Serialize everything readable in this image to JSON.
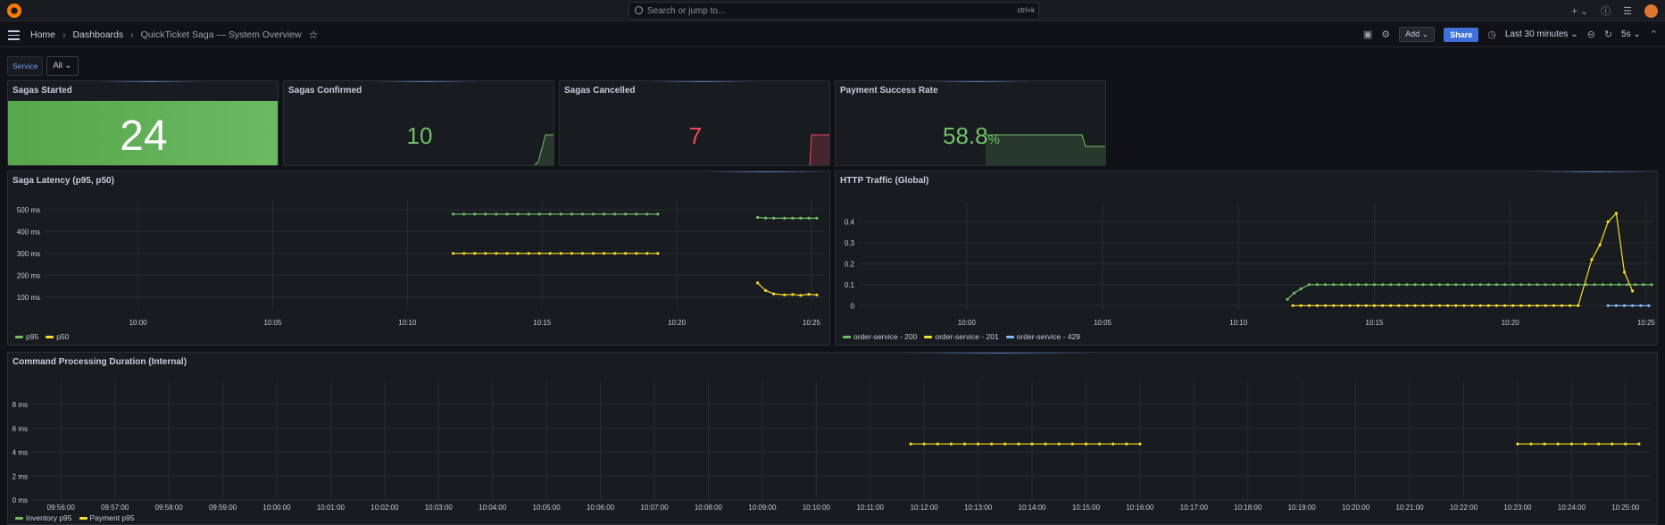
{
  "topbar": {
    "search_placeholder": "Search or jump to...",
    "search_shortcut": "ctrl+k",
    "icons": [
      "plus-icon",
      "help-icon",
      "rss-icon",
      "avatar"
    ]
  },
  "nav": {
    "home": "Home",
    "dashboards": "Dashboards",
    "current": "QuickTicket Saga — System Overview",
    "add_label": "Add",
    "share_label": "Share",
    "time_range": "Last 30 minutes",
    "refresh_interval": "5s"
  },
  "variables": {
    "service_label": "Service",
    "service_value": "All"
  },
  "colors": {
    "green": "#73bf69",
    "yellow": "#fade2a",
    "blue": "#8ab8ff",
    "red": "#f2495c",
    "bg_green": "#56a64b"
  },
  "stats": {
    "started": {
      "title": "Sagas Started",
      "value": "24"
    },
    "confirmed": {
      "title": "Sagas Confirmed",
      "value": "10"
    },
    "cancelled": {
      "title": "Sagas Cancelled",
      "value": "7"
    },
    "payment": {
      "title": "Payment Success Rate",
      "value": "58.8",
      "unit": "%"
    }
  },
  "panels": {
    "latency": {
      "title": "Saga Latency (p95, p50)",
      "legend": [
        "p95",
        "p50"
      ]
    },
    "http": {
      "title": "HTTP Traffic (Global)",
      "legend": [
        "order-service - 200",
        "order-service - 201",
        "order-service - 429"
      ]
    },
    "command": {
      "title": "Command Processing Duration (Internal)",
      "legend": [
        "Inventory p95",
        "Payment p95"
      ]
    }
  },
  "chart_data": [
    {
      "type": "line",
      "title": "Saga Latency (p95, p50)",
      "x_ticks": [
        "10:00",
        "10:05",
        "10:10",
        "10:15",
        "10:20",
        "10:25"
      ],
      "y_ticks": [
        "100 ms",
        "200 ms",
        "300 ms",
        "400 ms",
        "500 ms"
      ],
      "ylim": [
        50,
        520
      ],
      "x_range_min": [
        -3.5,
        25.5
      ],
      "series": [
        {
          "name": "p95",
          "color": "#73bf69",
          "segments": [
            {
              "x": [
                11.7,
                12.1,
                12.5,
                12.9,
                13.3,
                13.7,
                14.1,
                14.5,
                14.9,
                15.3,
                15.7,
                16.1,
                16.5,
                16.9,
                17.3,
                17.7,
                18.1,
                18.5,
                18.9,
                19.3
              ],
              "y": [
                480,
                480,
                480,
                480,
                480,
                480,
                480,
                480,
                480,
                480,
                480,
                480,
                480,
                480,
                480,
                480,
                480,
                480,
                480,
                480
              ]
            },
            {
              "x": [
                23.0,
                23.3,
                23.6,
                24.0,
                24.3,
                24.6,
                24.9,
                25.2
              ],
              "y": [
                465,
                462,
                461,
                461,
                461,
                461,
                461,
                461
              ]
            }
          ]
        },
        {
          "name": "p50",
          "color": "#fade2a",
          "segments": [
            {
              "x": [
                11.7,
                12.1,
                12.5,
                12.9,
                13.3,
                13.7,
                14.1,
                14.5,
                14.9,
                15.3,
                15.7,
                16.1,
                16.5,
                16.9,
                17.3,
                17.7,
                18.1,
                18.5,
                18.9,
                19.3
              ],
              "y": [
                300,
                300,
                300,
                300,
                300,
                300,
                300,
                300,
                300,
                300,
                300,
                300,
                300,
                300,
                300,
                300,
                300,
                300,
                300,
                300
              ]
            },
            {
              "x": [
                23.0,
                23.3,
                23.6,
                24.0,
                24.3,
                24.6,
                24.9,
                25.2
              ],
              "y": [
                165,
                130,
                115,
                110,
                112,
                108,
                113,
                110
              ]
            }
          ]
        }
      ]
    },
    {
      "type": "line",
      "title": "HTTP Traffic (Global)",
      "x_ticks": [
        "10:00",
        "10:05",
        "10:10",
        "10:15",
        "10:20",
        "10:25"
      ],
      "y_ticks": [
        "0",
        "0.1",
        "0.2",
        "0.3",
        "0.4"
      ],
      "ylim": [
        -0.02,
        0.47
      ],
      "x_range_min": [
        -4.0,
        25.3
      ],
      "series": [
        {
          "name": "order-service - 200",
          "color": "#73bf69",
          "points": "ramp",
          "x": [
            11.8,
            12.05,
            12.3,
            12.6,
            12.9,
            13.2,
            13.5,
            13.8,
            14.1,
            14.4,
            14.7,
            15.0,
            15.3,
            15.6,
            15.9,
            16.2,
            16.5,
            16.8,
            17.1,
            17.4,
            17.7,
            18.0,
            18.3,
            18.6,
            18.9,
            19.2,
            19.5,
            19.8,
            20.1,
            20.4,
            20.7,
            21.0,
            21.3,
            21.6,
            21.9,
            22.2,
            22.5,
            22.8,
            23.1,
            23.4,
            23.7,
            24.0,
            24.3,
            24.6,
            24.9,
            25.2
          ],
          "y": [
            0.03,
            0.06,
            0.08,
            0.1,
            0.1,
            0.1,
            0.1,
            0.1,
            0.1,
            0.1,
            0.1,
            0.1,
            0.1,
            0.1,
            0.1,
            0.1,
            0.1,
            0.1,
            0.1,
            0.1,
            0.1,
            0.1,
            0.1,
            0.1,
            0.1,
            0.1,
            0.1,
            0.1,
            0.1,
            0.1,
            0.1,
            0.1,
            0.1,
            0.1,
            0.1,
            0.1,
            0.1,
            0.1,
            0.1,
            0.1,
            0.1,
            0.1,
            0.1,
            0.1,
            0.1,
            0.1
          ]
        },
        {
          "name": "order-service - 201",
          "color": "#fade2a",
          "x": [
            12.0,
            12.3,
            12.6,
            12.9,
            13.2,
            13.5,
            13.8,
            14.1,
            14.4,
            14.7,
            15.0,
            15.3,
            15.6,
            15.9,
            16.2,
            16.5,
            16.8,
            17.1,
            17.4,
            17.7,
            18.0,
            18.3,
            18.6,
            18.9,
            19.2,
            19.5,
            19.8,
            20.1,
            20.4,
            20.7,
            21.0,
            21.3,
            21.6,
            21.9,
            22.2,
            22.5,
            23.0,
            23.3,
            23.6,
            23.9,
            24.2,
            24.5
          ],
          "y": [
            0,
            0,
            0,
            0,
            0,
            0,
            0,
            0,
            0,
            0,
            0,
            0,
            0,
            0,
            0,
            0,
            0,
            0,
            0,
            0,
            0,
            0,
            0,
            0,
            0,
            0,
            0,
            0,
            0,
            0,
            0,
            0,
            0,
            0,
            0,
            0,
            0.22,
            0.29,
            0.4,
            0.44,
            0.16,
            0.07
          ]
        },
        {
          "name": "order-service - 429",
          "color": "#8ab8ff",
          "x": [
            23.6,
            23.9,
            24.2,
            24.5,
            24.8,
            25.1
          ],
          "y": [
            0,
            0,
            0,
            0,
            0,
            0
          ]
        }
      ]
    },
    {
      "type": "line",
      "title": "Command Processing Duration (Internal)",
      "x_ticks": [
        "09:56:00",
        "09:57:00",
        "09:58:00",
        "09:59:00",
        "10:00:00",
        "10:01:00",
        "10:02:00",
        "10:03:00",
        "10:04:00",
        "10:05:00",
        "10:06:00",
        "10:07:00",
        "10:08:00",
        "10:09:00",
        "10:10:00",
        "10:11:00",
        "10:12:00",
        "10:13:00",
        "10:14:00",
        "10:15:00",
        "10:16:00",
        "10:17:00",
        "10:18:00",
        "10:19:00",
        "10:20:00",
        "10:21:00",
        "10:22:00",
        "10:23:00",
        "10:24:00",
        "10:25:00"
      ],
      "y_ticks": [
        "0 ms",
        "2 ms",
        "4 ms",
        "6 ms",
        "8 ms"
      ],
      "ylim": [
        0,
        9.5
      ],
      "x_range_min": [
        -0.55,
        29.5
      ],
      "series": [
        {
          "name": "Inventory p95",
          "color": "#73bf69",
          "x": [],
          "y": []
        },
        {
          "name": "Payment p95",
          "color": "#fade2a",
          "segments": [
            {
              "x": [
                15.75,
                16.0,
                16.25,
                16.5,
                16.75,
                17.0,
                17.25,
                17.5,
                17.75,
                18.0,
                18.25,
                18.5,
                18.75,
                19.0,
                19.25,
                19.5,
                19.75,
                20.0
              ],
              "y": [
                4.7,
                4.7,
                4.7,
                4.7,
                4.7,
                4.7,
                4.7,
                4.7,
                4.7,
                4.7,
                4.7,
                4.7,
                4.7,
                4.7,
                4.7,
                4.7,
                4.7,
                4.7
              ]
            },
            {
              "x": [
                27.0,
                27.25,
                27.5,
                27.75,
                28.0,
                28.25,
                28.5,
                28.75,
                29.0,
                29.25
              ],
              "y": [
                4.7,
                4.7,
                4.7,
                4.7,
                4.7,
                4.7,
                4.7,
                4.7,
                4.7,
                4.7
              ]
            }
          ]
        }
      ]
    }
  ]
}
